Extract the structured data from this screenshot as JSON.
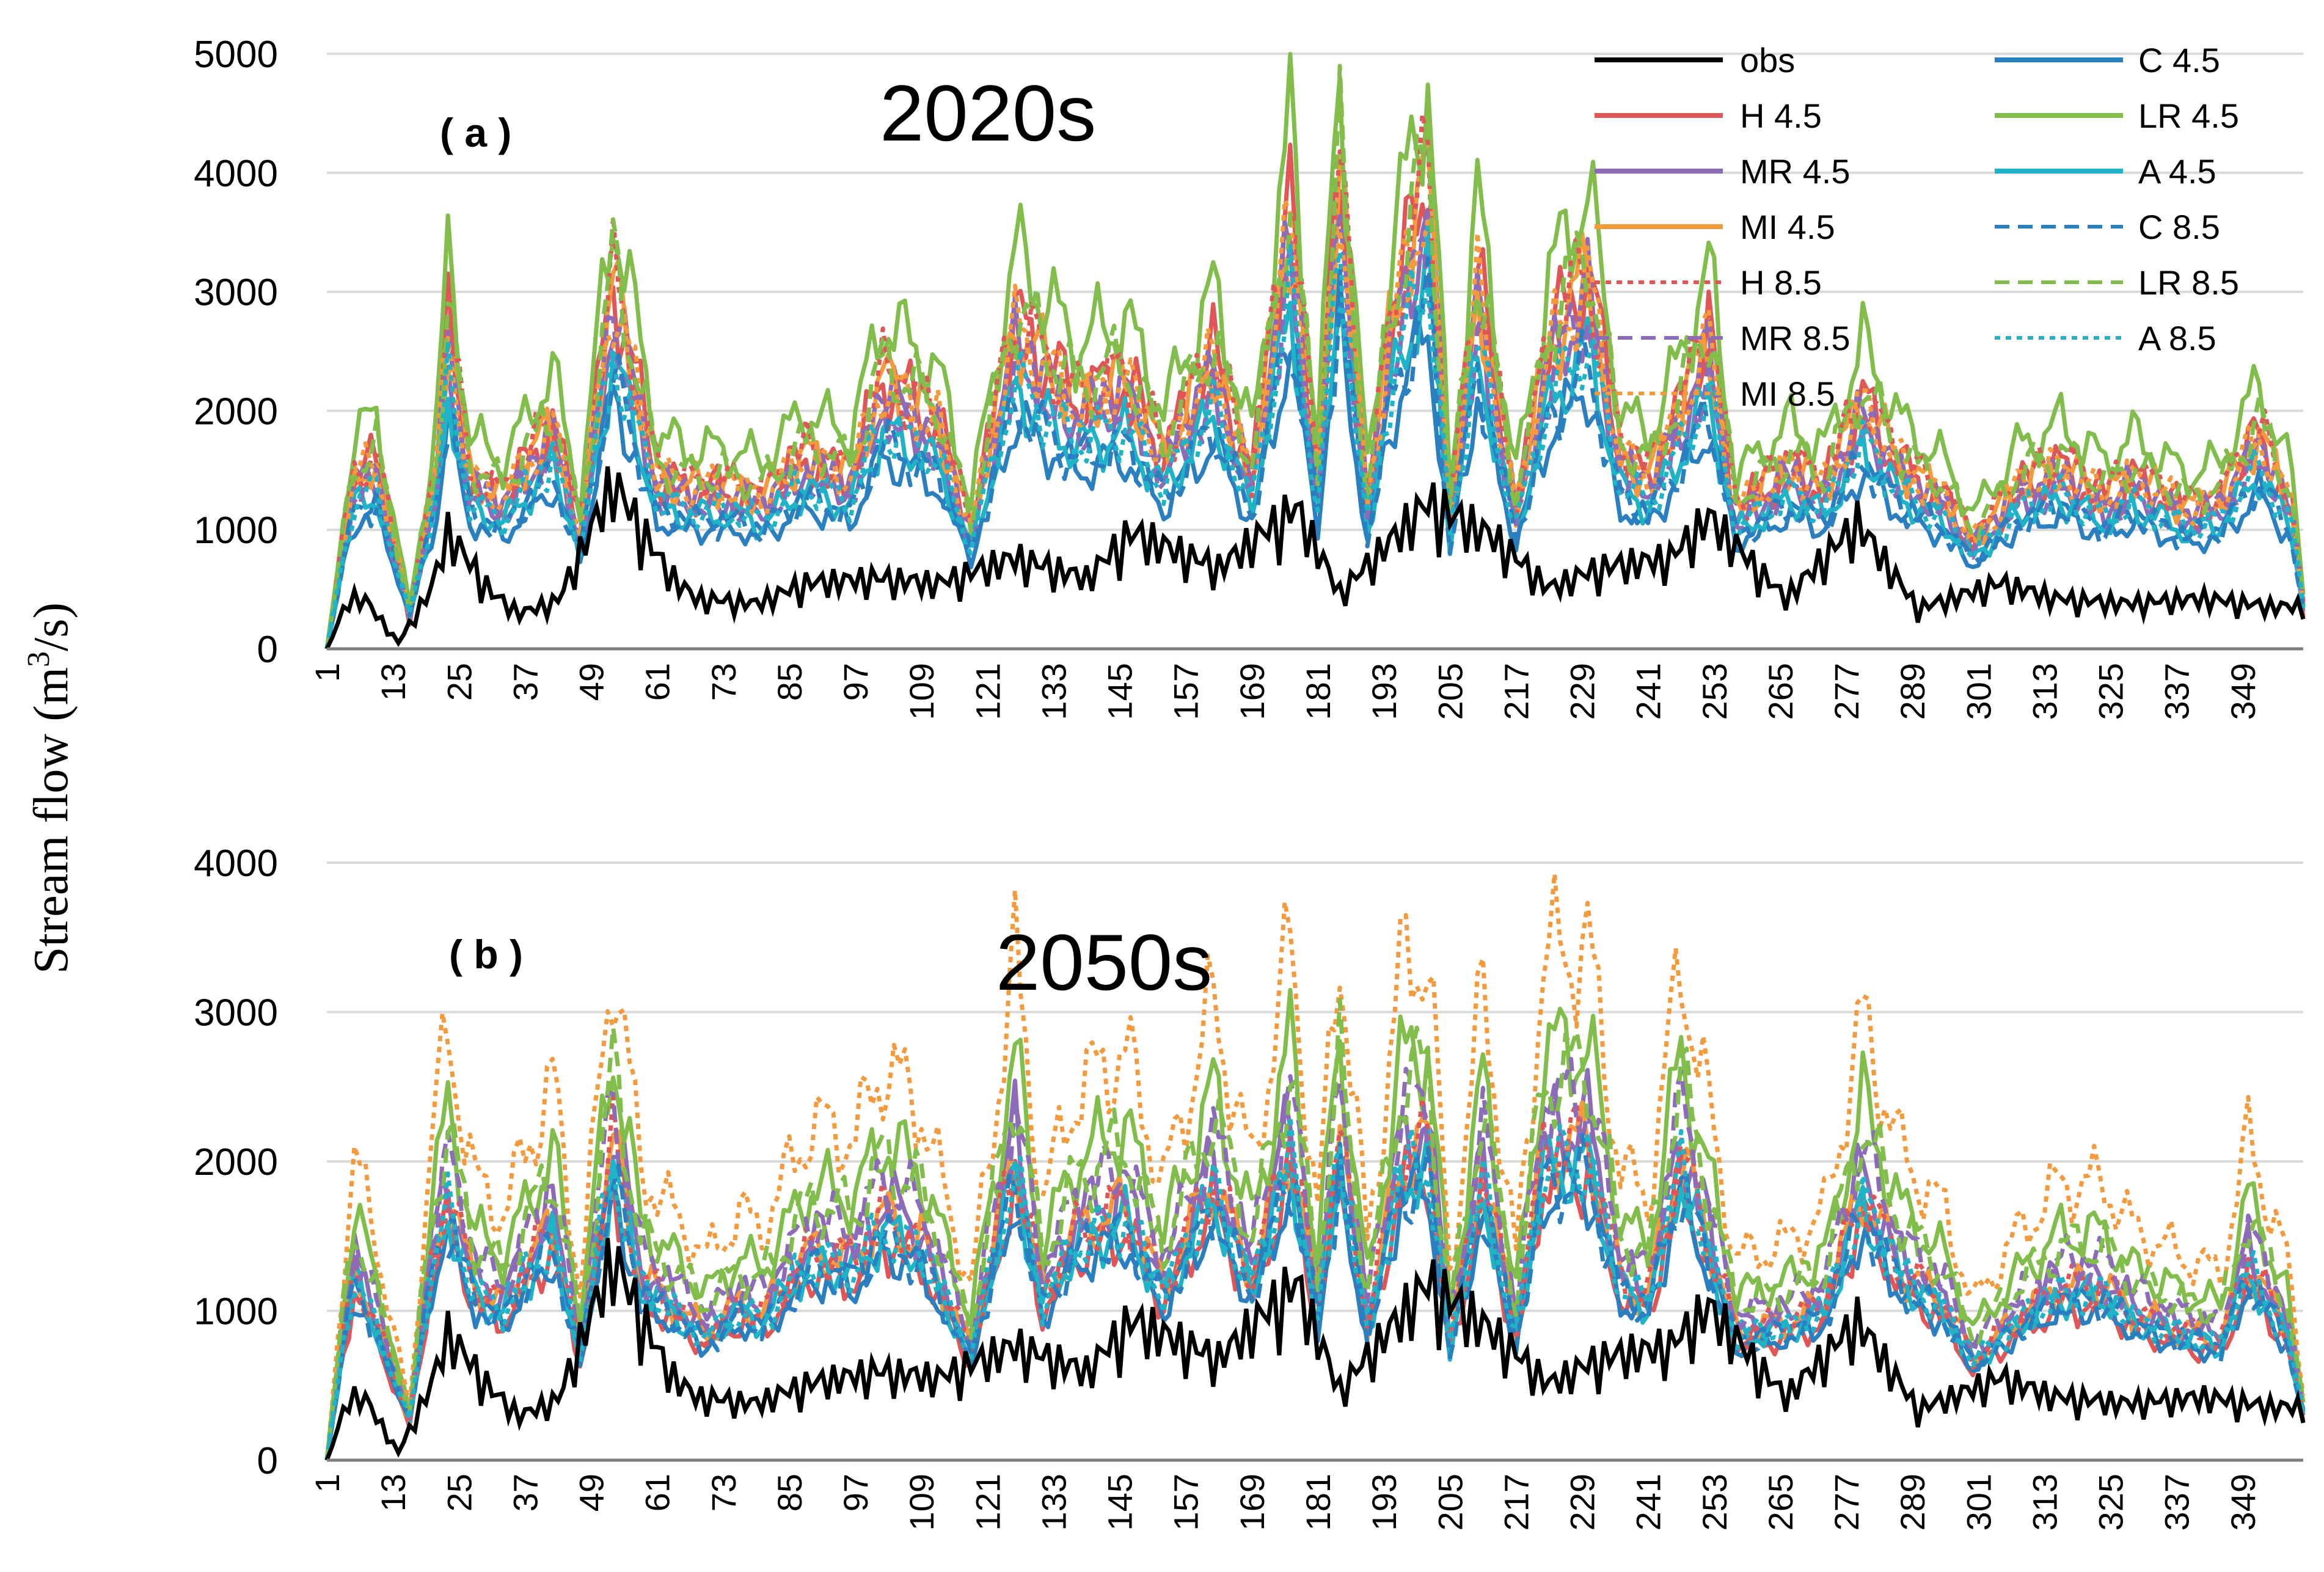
{
  "colors": {
    "obs": "#000000",
    "H": "#e05656",
    "MR": "#8c6bb8",
    "MI": "#f59a3c",
    "C": "#2a7fc0",
    "LR": "#80bd4a",
    "A": "#1fb3c8",
    "grid": "#d9d9d9",
    "axis": "#7f7f7f"
  },
  "figure": {
    "y_axis_label": "Stream flow (m",
    "y_axis_label_sup": "3",
    "y_axis_label_end": "/s)"
  },
  "chart_data": [
    {
      "type": "line",
      "panel": "( a )",
      "title": "2020s",
      "xlabel": "",
      "ylabel": "Stream flow (m3/s)",
      "ylim": [
        0,
        5000
      ],
      "yticks": [
        0,
        1000,
        2000,
        3000,
        4000,
        5000
      ],
      "x_range": [
        1,
        360
      ],
      "xticks": [
        1,
        13,
        25,
        37,
        49,
        61,
        73,
        85,
        97,
        109,
        121,
        133,
        145,
        157,
        169,
        181,
        193,
        205,
        217,
        229,
        241,
        253,
        265,
        277,
        289,
        301,
        313,
        325,
        337,
        349
      ],
      "legend_position": "top-right",
      "legend": [
        {
          "label": "obs",
          "color_key": "obs",
          "dash": "solid"
        },
        {
          "label": "C 4.5",
          "color_key": "C",
          "dash": "solid"
        },
        {
          "label": "H 4.5",
          "color_key": "H",
          "dash": "solid"
        },
        {
          "label": "LR 4.5",
          "color_key": "LR",
          "dash": "solid"
        },
        {
          "label": "MR 4.5",
          "color_key": "MR",
          "dash": "solid"
        },
        {
          "label": "A 4.5",
          "color_key": "A",
          "dash": "solid"
        },
        {
          "label": "MI 4.5",
          "color_key": "MI",
          "dash": "solid"
        },
        {
          "label": "C 8.5",
          "color_key": "C",
          "dash": "dashed"
        },
        {
          "label": "H 8.5",
          "color_key": "H",
          "dash": "dotted"
        },
        {
          "label": "LR 8.5",
          "color_key": "LR",
          "dash": "dashed"
        },
        {
          "label": "MR 8.5",
          "color_key": "MR",
          "dash": "dashed"
        },
        {
          "label": "A 8.5",
          "color_key": "A",
          "dash": "dotted"
        },
        {
          "label": "MI 8.5",
          "color_key": "MI",
          "dash": "dotted"
        }
      ],
      "obs_peaks": [
        {
          "x": 1,
          "y": 0
        },
        {
          "x": 5,
          "y": 500
        },
        {
          "x": 8,
          "y": 480
        },
        {
          "x": 14,
          "y": 60
        },
        {
          "x": 20,
          "y": 600
        },
        {
          "x": 23,
          "y": 1150
        },
        {
          "x": 31,
          "y": 550
        },
        {
          "x": 36,
          "y": 350
        },
        {
          "x": 43,
          "y": 480
        },
        {
          "x": 53,
          "y": 1650
        },
        {
          "x": 63,
          "y": 750
        },
        {
          "x": 68,
          "y": 500
        },
        {
          "x": 79,
          "y": 450
        },
        {
          "x": 88,
          "y": 650
        },
        {
          "x": 101,
          "y": 700
        },
        {
          "x": 112,
          "y": 650
        },
        {
          "x": 126,
          "y": 900
        },
        {
          "x": 139,
          "y": 700
        },
        {
          "x": 147,
          "y": 1150
        },
        {
          "x": 163,
          "y": 800
        },
        {
          "x": 177,
          "y": 1400
        },
        {
          "x": 185,
          "y": 550
        },
        {
          "x": 201,
          "y": 1450
        },
        {
          "x": 213,
          "y": 1100
        },
        {
          "x": 223,
          "y": 600
        },
        {
          "x": 232,
          "y": 800
        },
        {
          "x": 245,
          "y": 900
        },
        {
          "x": 252,
          "y": 1300
        },
        {
          "x": 266,
          "y": 500
        },
        {
          "x": 279,
          "y": 1250
        },
        {
          "x": 290,
          "y": 400
        },
        {
          "x": 305,
          "y": 650
        },
        {
          "x": 315,
          "y": 500
        },
        {
          "x": 328,
          "y": 450
        },
        {
          "x": 342,
          "y": 500
        },
        {
          "x": 354,
          "y": 420
        }
      ],
      "peaks": [
        {
          "x": 1,
          "y": 0
        },
        {
          "x": 6,
          "y": 1500
        },
        {
          "x": 10,
          "y": 1650
        },
        {
          "x": 16,
          "y": 200
        },
        {
          "x": 21,
          "y": 1600
        },
        {
          "x": 23,
          "y": 2900
        },
        {
          "x": 27,
          "y": 1500
        },
        {
          "x": 33,
          "y": 1300
        },
        {
          "x": 42,
          "y": 2000
        },
        {
          "x": 47,
          "y": 1000
        },
        {
          "x": 53,
          "y": 3300
        },
        {
          "x": 61,
          "y": 1500
        },
        {
          "x": 67,
          "y": 1400
        },
        {
          "x": 75,
          "y": 1400
        },
        {
          "x": 80,
          "y": 1300
        },
        {
          "x": 88,
          "y": 1700
        },
        {
          "x": 96,
          "y": 1500
        },
        {
          "x": 102,
          "y": 2400
        },
        {
          "x": 112,
          "y": 2000
        },
        {
          "x": 118,
          "y": 1000
        },
        {
          "x": 126,
          "y": 2900
        },
        {
          "x": 137,
          "y": 2200
        },
        {
          "x": 146,
          "y": 2400
        },
        {
          "x": 153,
          "y": 1700
        },
        {
          "x": 162,
          "y": 2600
        },
        {
          "x": 169,
          "y": 1500
        },
        {
          "x": 176,
          "y": 3900
        },
        {
          "x": 181,
          "y": 1500
        },
        {
          "x": 185,
          "y": 4300
        },
        {
          "x": 190,
          "y": 1200
        },
        {
          "x": 194,
          "y": 2800
        },
        {
          "x": 201,
          "y": 4300
        },
        {
          "x": 205,
          "y": 1100
        },
        {
          "x": 210,
          "y": 3300
        },
        {
          "x": 217,
          "y": 1200
        },
        {
          "x": 223,
          "y": 2700
        },
        {
          "x": 230,
          "y": 3400
        },
        {
          "x": 236,
          "y": 1700
        },
        {
          "x": 241,
          "y": 1500
        },
        {
          "x": 246,
          "y": 2000
        },
        {
          "x": 252,
          "y": 2800
        },
        {
          "x": 257,
          "y": 1200
        },
        {
          "x": 267,
          "y": 1600
        },
        {
          "x": 273,
          "y": 1400
        },
        {
          "x": 280,
          "y": 2200
        },
        {
          "x": 287,
          "y": 1600
        },
        {
          "x": 295,
          "y": 1300
        },
        {
          "x": 300,
          "y": 900
        },
        {
          "x": 308,
          "y": 1400
        },
        {
          "x": 316,
          "y": 1600
        },
        {
          "x": 324,
          "y": 1300
        },
        {
          "x": 329,
          "y": 1500
        },
        {
          "x": 339,
          "y": 1200
        },
        {
          "x": 345,
          "y": 1300
        },
        {
          "x": 352,
          "y": 1900
        },
        {
          "x": 358,
          "y": 1200
        },
        {
          "x": 360,
          "y": 300
        }
      ],
      "series_scales": [
        {
          "name": "H 4.5",
          "color_key": "H",
          "dash": "solid",
          "scale": 0.95,
          "floor": 0
        },
        {
          "name": "MR 4.5",
          "color_key": "MR",
          "dash": "solid",
          "scale": 0.85,
          "floor": 150
        },
        {
          "name": "MI 4.5",
          "color_key": "MI",
          "dash": "solid",
          "scale": 0.9,
          "floor": 180
        },
        {
          "name": "C 4.5",
          "color_key": "C",
          "dash": "solid",
          "scale": 0.6,
          "floor": 250
        },
        {
          "name": "LR 4.5",
          "color_key": "LR",
          "dash": "solid",
          "scale": 1.1,
          "floor": 300
        },
        {
          "name": "A 4.5",
          "color_key": "A",
          "dash": "solid",
          "scale": 0.7,
          "floor": 220
        },
        {
          "name": "H 8.5",
          "color_key": "H",
          "dash": "dotted",
          "scale": 0.92,
          "floor": 200
        },
        {
          "name": "MR 8.5",
          "color_key": "MR",
          "dash": "dashed",
          "scale": 0.8,
          "floor": 200
        },
        {
          "name": "MI 8.5",
          "color_key": "MI",
          "dash": "dotted",
          "scale": 0.88,
          "floor": 220
        },
        {
          "name": "C 8.5",
          "color_key": "C",
          "dash": "dashed",
          "scale": 0.65,
          "floor": 230
        },
        {
          "name": "LR 8.5",
          "color_key": "LR",
          "dash": "dashed",
          "scale": 0.95,
          "floor": 260
        },
        {
          "name": "A 8.5",
          "color_key": "A",
          "dash": "dotted",
          "scale": 0.72,
          "floor": 230
        }
      ]
    },
    {
      "type": "line",
      "panel": "( b )",
      "title": "2050s",
      "xlabel": "",
      "ylabel": "Stream flow (m3/s)",
      "ylim": [
        0,
        4000
      ],
      "yticks": [
        0,
        1000,
        2000,
        3000,
        4000
      ],
      "x_range": [
        1,
        360
      ],
      "xticks": [
        1,
        13,
        25,
        37,
        49,
        61,
        73,
        85,
        97,
        109,
        121,
        133,
        145,
        157,
        169,
        181,
        193,
        205,
        217,
        229,
        241,
        253,
        265,
        277,
        289,
        301,
        313,
        325,
        337,
        349
      ],
      "obs_peaks": [
        {
          "x": 1,
          "y": 0
        },
        {
          "x": 5,
          "y": 500
        },
        {
          "x": 8,
          "y": 480
        },
        {
          "x": 14,
          "y": 60
        },
        {
          "x": 20,
          "y": 600
        },
        {
          "x": 23,
          "y": 1000
        },
        {
          "x": 31,
          "y": 550
        },
        {
          "x": 36,
          "y": 350
        },
        {
          "x": 43,
          "y": 480
        },
        {
          "x": 53,
          "y": 1600
        },
        {
          "x": 63,
          "y": 700
        },
        {
          "x": 68,
          "y": 500
        },
        {
          "x": 79,
          "y": 450
        },
        {
          "x": 88,
          "y": 600
        },
        {
          "x": 101,
          "y": 700
        },
        {
          "x": 112,
          "y": 650
        },
        {
          "x": 126,
          "y": 900
        },
        {
          "x": 139,
          "y": 700
        },
        {
          "x": 147,
          "y": 1100
        },
        {
          "x": 163,
          "y": 800
        },
        {
          "x": 177,
          "y": 1400
        },
        {
          "x": 185,
          "y": 550
        },
        {
          "x": 201,
          "y": 1400
        },
        {
          "x": 213,
          "y": 1000
        },
        {
          "x": 223,
          "y": 600
        },
        {
          "x": 232,
          "y": 800
        },
        {
          "x": 245,
          "y": 900
        },
        {
          "x": 252,
          "y": 1200
        },
        {
          "x": 266,
          "y": 500
        },
        {
          "x": 279,
          "y": 1100
        },
        {
          "x": 290,
          "y": 400
        },
        {
          "x": 305,
          "y": 650
        },
        {
          "x": 315,
          "y": 500
        },
        {
          "x": 328,
          "y": 450
        },
        {
          "x": 342,
          "y": 500
        },
        {
          "x": 354,
          "y": 420
        }
      ],
      "peaks": [
        {
          "x": 1,
          "y": 0
        },
        {
          "x": 6,
          "y": 1900
        },
        {
          "x": 10,
          "y": 1300
        },
        {
          "x": 16,
          "y": 200
        },
        {
          "x": 20,
          "y": 2000
        },
        {
          "x": 23,
          "y": 2700
        },
        {
          "x": 28,
          "y": 1700
        },
        {
          "x": 33,
          "y": 1500
        },
        {
          "x": 42,
          "y": 2400
        },
        {
          "x": 47,
          "y": 1000
        },
        {
          "x": 53,
          "y": 3300
        },
        {
          "x": 58,
          "y": 1800
        },
        {
          "x": 62,
          "y": 1600
        },
        {
          "x": 70,
          "y": 1200
        },
        {
          "x": 76,
          "y": 1500
        },
        {
          "x": 80,
          "y": 1400
        },
        {
          "x": 89,
          "y": 2100
        },
        {
          "x": 97,
          "y": 2000
        },
        {
          "x": 102,
          "y": 2500
        },
        {
          "x": 109,
          "y": 2200
        },
        {
          "x": 118,
          "y": 1000
        },
        {
          "x": 126,
          "y": 3200
        },
        {
          "x": 131,
          "y": 1600
        },
        {
          "x": 137,
          "y": 2300
        },
        {
          "x": 146,
          "y": 2600
        },
        {
          "x": 153,
          "y": 1700
        },
        {
          "x": 162,
          "y": 2900
        },
        {
          "x": 169,
          "y": 1800
        },
        {
          "x": 176,
          "y": 3300
        },
        {
          "x": 181,
          "y": 1500
        },
        {
          "x": 185,
          "y": 3350
        },
        {
          "x": 190,
          "y": 1300
        },
        {
          "x": 196,
          "y": 3100
        },
        {
          "x": 201,
          "y": 3300
        },
        {
          "x": 205,
          "y": 1100
        },
        {
          "x": 211,
          "y": 3000
        },
        {
          "x": 217,
          "y": 1200
        },
        {
          "x": 222,
          "y": 3200
        },
        {
          "x": 230,
          "y": 3300
        },
        {
          "x": 236,
          "y": 1800
        },
        {
          "x": 241,
          "y": 1600
        },
        {
          "x": 247,
          "y": 3200
        },
        {
          "x": 252,
          "y": 2200
        },
        {
          "x": 257,
          "y": 1200
        },
        {
          "x": 266,
          "y": 1300
        },
        {
          "x": 273,
          "y": 1500
        },
        {
          "x": 280,
          "y": 2800
        },
        {
          "x": 287,
          "y": 1900
        },
        {
          "x": 295,
          "y": 1500
        },
        {
          "x": 300,
          "y": 900
        },
        {
          "x": 309,
          "y": 1400
        },
        {
          "x": 316,
          "y": 1700
        },
        {
          "x": 324,
          "y": 1700
        },
        {
          "x": 329,
          "y": 1400
        },
        {
          "x": 339,
          "y": 1200
        },
        {
          "x": 345,
          "y": 1100
        },
        {
          "x": 350,
          "y": 2000
        },
        {
          "x": 357,
          "y": 1200
        },
        {
          "x": 360,
          "y": 300
        }
      ],
      "series_scales": [
        {
          "name": "H 4.5",
          "color_key": "H",
          "dash": "solid",
          "scale": 0.55,
          "floor": 150
        },
        {
          "name": "MR 4.5",
          "color_key": "MR",
          "dash": "solid",
          "scale": 0.65,
          "floor": 180
        },
        {
          "name": "MI 4.5",
          "color_key": "MI",
          "dash": "solid",
          "scale": 0.6,
          "floor": 200
        },
        {
          "name": "C 4.5",
          "color_key": "C",
          "dash": "solid",
          "scale": 0.5,
          "floor": 230
        },
        {
          "name": "LR 4.5",
          "color_key": "LR",
          "dash": "solid",
          "scale": 0.8,
          "floor": 260
        },
        {
          "name": "A 4.5",
          "color_key": "A",
          "dash": "solid",
          "scale": 0.55,
          "floor": 220
        },
        {
          "name": "H 8.5",
          "color_key": "H",
          "dash": "dotted",
          "scale": 0.6,
          "floor": 200
        },
        {
          "name": "MR 8.5",
          "color_key": "MR",
          "dash": "dashed",
          "scale": 0.7,
          "floor": 200
        },
        {
          "name": "MI 8.5",
          "color_key": "MI",
          "dash": "dotted",
          "scale": 1.0,
          "floor": 300
        },
        {
          "name": "C 8.5",
          "color_key": "C",
          "dash": "dashed",
          "scale": 0.52,
          "floor": 230
        },
        {
          "name": "LR 8.5",
          "color_key": "LR",
          "dash": "dashed",
          "scale": 0.75,
          "floor": 250
        },
        {
          "name": "A 8.5",
          "color_key": "A",
          "dash": "dotted",
          "scale": 0.56,
          "floor": 220
        }
      ]
    }
  ]
}
